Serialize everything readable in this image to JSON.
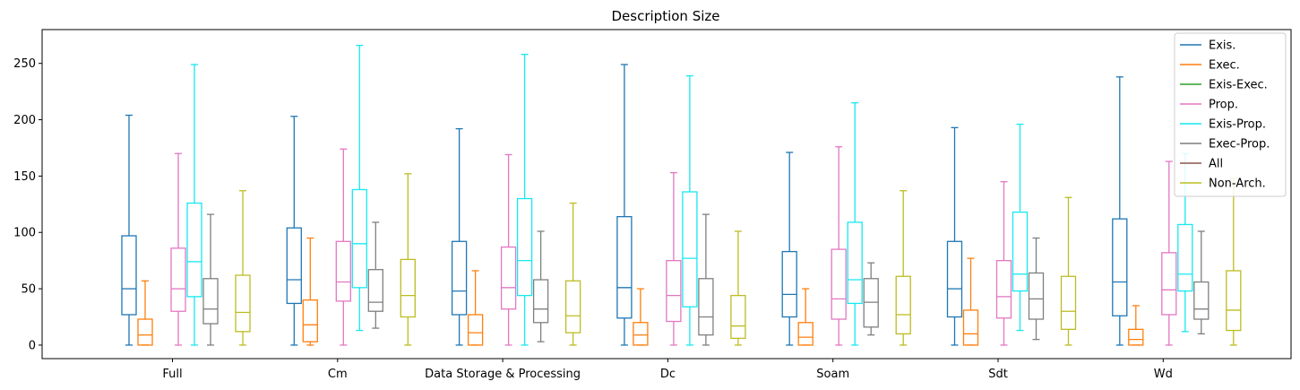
{
  "chart_data": {
    "type": "box",
    "title": "Description Size",
    "xlabel": "",
    "ylabel": "",
    "ylim": [
      -12,
      280
    ],
    "yticks": [
      0,
      50,
      100,
      150,
      200,
      250
    ],
    "grid": false,
    "legend_position": "top-right",
    "categories": [
      "Full",
      "Cm",
      "Data Storage & Processing",
      "Dc",
      "Soam",
      "Sdt",
      "Wd"
    ],
    "series": [
      {
        "name": "Exis.",
        "color": "#1f77b4",
        "boxes": [
          {
            "min": 0,
            "q1": 27,
            "median": 50,
            "q3": 97,
            "max": 204
          },
          {
            "min": 0,
            "q1": 37,
            "median": 58,
            "q3": 104,
            "max": 203
          },
          {
            "min": 0,
            "q1": 27,
            "median": 48,
            "q3": 92,
            "max": 192
          },
          {
            "min": 0,
            "q1": 24,
            "median": 51,
            "q3": 114,
            "max": 249
          },
          {
            "min": 0,
            "q1": 25,
            "median": 45,
            "q3": 83,
            "max": 171
          },
          {
            "min": 0,
            "q1": 25,
            "median": 50,
            "q3": 92,
            "max": 193
          },
          {
            "min": 0,
            "q1": 26,
            "median": 56,
            "q3": 112,
            "max": 238
          }
        ]
      },
      {
        "name": "Exec.",
        "color": "#ff7f0e",
        "boxes": [
          {
            "min": 0,
            "q1": 0,
            "median": 9,
            "q3": 23,
            "max": 57
          },
          {
            "min": 0,
            "q1": 3,
            "median": 18,
            "q3": 40,
            "max": 95
          },
          {
            "min": 0,
            "q1": 0,
            "median": 11,
            "q3": 27,
            "max": 66
          },
          {
            "min": 0,
            "q1": 0,
            "median": 9,
            "q3": 20,
            "max": 50
          },
          {
            "min": 0,
            "q1": 0,
            "median": 7,
            "q3": 20,
            "max": 50
          },
          {
            "min": 0,
            "q1": 0,
            "median": 10,
            "q3": 31,
            "max": 77
          },
          {
            "min": 0,
            "q1": 0,
            "median": 5,
            "q3": 14,
            "max": 35
          }
        ]
      },
      {
        "name": "Exis-Exec.",
        "color": "#2ca02c",
        "boxes": []
      },
      {
        "name": "Prop.",
        "color": "#e377c2",
        "boxes": [
          {
            "min": 0,
            "q1": 30,
            "median": 50,
            "q3": 86,
            "max": 170
          },
          {
            "min": 0,
            "q1": 39,
            "median": 56,
            "q3": 92,
            "max": 174
          },
          {
            "min": 0,
            "q1": 32,
            "median": 51,
            "q3": 87,
            "max": 169
          },
          {
            "min": 0,
            "q1": 21,
            "median": 44,
            "q3": 75,
            "max": 153
          },
          {
            "min": 0,
            "q1": 23,
            "median": 41,
            "q3": 85,
            "max": 176
          },
          {
            "min": 0,
            "q1": 24,
            "median": 43,
            "q3": 75,
            "max": 145
          },
          {
            "min": 0,
            "q1": 27,
            "median": 49,
            "q3": 82,
            "max": 163
          }
        ]
      },
      {
        "name": "Exis-Prop.",
        "color": "#17e8f0",
        "boxes": [
          {
            "min": 0,
            "q1": 43,
            "median": 74,
            "q3": 126,
            "max": 249
          },
          {
            "min": 13,
            "q1": 51,
            "median": 90,
            "q3": 138,
            "max": 266
          },
          {
            "min": 0,
            "q1": 44,
            "median": 75,
            "q3": 130,
            "max": 258
          },
          {
            "min": 0,
            "q1": 34,
            "median": 77,
            "q3": 136,
            "max": 239
          },
          {
            "min": 0,
            "q1": 37,
            "median": 58,
            "q3": 109,
            "max": 215
          },
          {
            "min": 13,
            "q1": 48,
            "median": 63,
            "q3": 118,
            "max": 196
          },
          {
            "min": 12,
            "q1": 48,
            "median": 63,
            "q3": 107,
            "max": 170
          }
        ]
      },
      {
        "name": "Exec-Prop.",
        "color": "#7f7f7f",
        "boxes": [
          {
            "min": 0,
            "q1": 19,
            "median": 32,
            "q3": 59,
            "max": 116
          },
          {
            "min": 15,
            "q1": 30,
            "median": 38,
            "q3": 67,
            "max": 109
          },
          {
            "min": 3,
            "q1": 20,
            "median": 32,
            "q3": 58,
            "max": 101
          },
          {
            "min": 0,
            "q1": 9,
            "median": 25,
            "q3": 59,
            "max": 116
          },
          {
            "min": 9,
            "q1": 16,
            "median": 38,
            "q3": 59,
            "max": 73
          },
          {
            "min": 5,
            "q1": 23,
            "median": 41,
            "q3": 64,
            "max": 95
          },
          {
            "min": 10,
            "q1": 23,
            "median": 32,
            "q3": 56,
            "max": 101
          }
        ]
      },
      {
        "name": "All",
        "color": "#8c564b",
        "boxes": []
      },
      {
        "name": "Non-Arch.",
        "color": "#bcbd22",
        "boxes": [
          {
            "min": 0,
            "q1": 12,
            "median": 29,
            "q3": 62,
            "max": 137
          },
          {
            "min": 0,
            "q1": 25,
            "median": 44,
            "q3": 76,
            "max": 152
          },
          {
            "min": 0,
            "q1": 11,
            "median": 26,
            "q3": 57,
            "max": 126
          },
          {
            "min": 0,
            "q1": 6,
            "median": 17,
            "q3": 44,
            "max": 101
          },
          {
            "min": 0,
            "q1": 10,
            "median": 27,
            "q3": 61,
            "max": 137
          },
          {
            "min": 0,
            "q1": 14,
            "median": 30,
            "q3": 61,
            "max": 131
          },
          {
            "min": 0,
            "q1": 13,
            "median": 31,
            "q3": 66,
            "max": 148
          }
        ]
      }
    ]
  }
}
